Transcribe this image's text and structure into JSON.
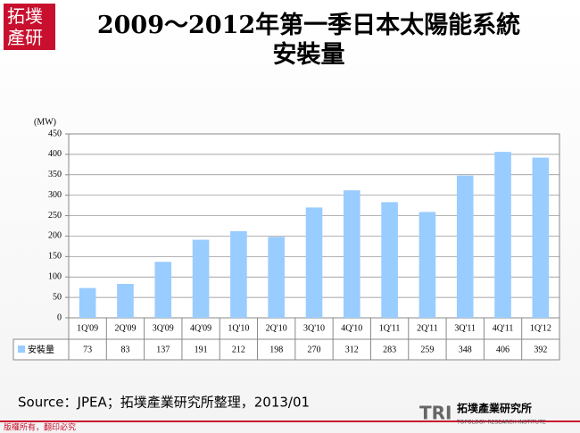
{
  "logo": "拓墣產研",
  "chart_data": {
    "type": "bar",
    "title": "2009～2012年第一季日本太陽能系統安裝量",
    "y_unit": "(MW)",
    "categories": [
      "1Q'09",
      "2Q'09",
      "3Q'09",
      "4Q'09",
      "1Q'10",
      "2Q'10",
      "3Q'10",
      "4Q'10",
      "1Q'11",
      "2Q'11",
      "3Q'11",
      "4Q'11",
      "1Q'12"
    ],
    "series": [
      {
        "name": "安裝量",
        "color": "#99ccff",
        "values": [
          73,
          83,
          137,
          191,
          212,
          198,
          270,
          312,
          283,
          259,
          348,
          406,
          392
        ]
      }
    ],
    "ylim": [
      0,
      450
    ],
    "yticks": [
      0,
      50,
      100,
      150,
      200,
      250,
      300,
      350,
      400,
      450
    ],
    "grid": true
  },
  "source": "Source：JPEA；拓墣產業研究所整理，2013/01",
  "copyright": "版權所有，翻印必究",
  "footer_logo": {
    "mark": "TRI",
    "name": "拓墣產業研究所",
    "subtitle": "TOPOLOGY RESEARCH INSTITUTE"
  }
}
